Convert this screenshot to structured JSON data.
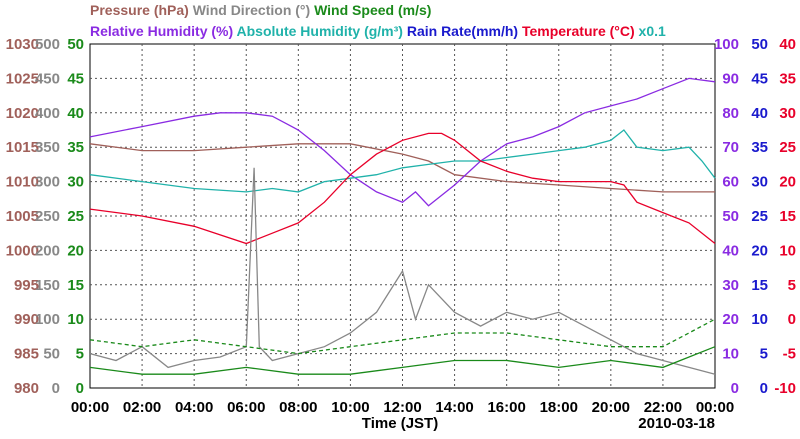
{
  "chart_data": {
    "type": "line",
    "legend_line1": [
      {
        "label": "Pressure (hPa)",
        "color": "#a0605a"
      },
      {
        "label": "Wind Direction (°)",
        "color": "#888888"
      },
      {
        "label": "Wind Speed (m/s)",
        "color": "#1a8a1a"
      }
    ],
    "legend_line2": [
      {
        "label": "Relative Humidity (%)",
        "color": "#8a2be2"
      },
      {
        "label": "Absolute Humidity (g/m³)",
        "color": "#20b2aa"
      },
      {
        "label": "Rain Rate(mm/h)",
        "color": "#1a1acd"
      },
      {
        "label": "Temperature (°C)",
        "color": "#e8002a"
      },
      {
        "label": "x0.1",
        "color": "#20b2aa"
      }
    ],
    "xlabel": "Time (JST)",
    "date": "2010-03-18",
    "x_ticks": [
      "00:00",
      "02:00",
      "04:00",
      "06:00",
      "08:00",
      "10:00",
      "12:00",
      "14:00",
      "16:00",
      "18:00",
      "20:00",
      "22:00",
      "00:00"
    ],
    "x_range": [
      0,
      24
    ],
    "axes": {
      "pressure": {
        "ticks": [
          "1030",
          "1025",
          "1020",
          "1015",
          "1010",
          "1005",
          "1000",
          "995",
          "990",
          "985",
          "980"
        ],
        "range": [
          980,
          1030
        ],
        "color": "#a0605a"
      },
      "wind_direction": {
        "ticks": [
          "500",
          "450",
          "400",
          "350",
          "300",
          "250",
          "200",
          "150",
          "100",
          "50",
          "0"
        ],
        "range": [
          0,
          500
        ],
        "color": "#888888"
      },
      "wind_speed": {
        "ticks": [
          "50",
          "45",
          "40",
          "35",
          "30",
          "25",
          "20",
          "15",
          "10",
          "5",
          "0"
        ],
        "range": [
          0,
          50
        ],
        "color": "#1a8a1a"
      },
      "humidity": {
        "ticks": [
          "100",
          "90",
          "80",
          "70",
          "60",
          "50",
          "40",
          "30",
          "20",
          "10",
          "0"
        ],
        "range": [
          0,
          100
        ],
        "color": "#8a2be2"
      },
      "rain_rate": {
        "ticks": [
          "50",
          "45",
          "40",
          "35",
          "30",
          "25",
          "20",
          "15",
          "10",
          "5",
          "0"
        ],
        "range": [
          0,
          50
        ],
        "color": "#1a1acd"
      },
      "temperature": {
        "ticks": [
          "40",
          "35",
          "30",
          "25",
          "20",
          "15",
          "10",
          "5",
          "0",
          "-5",
          "-10"
        ],
        "range": [
          -10,
          40
        ],
        "color": "#e8002a"
      }
    },
    "series": [
      {
        "name": "Pressure",
        "axis": "pressure",
        "color": "#a0605a",
        "x": [
          0,
          2,
          4,
          6,
          8,
          10,
          12,
          13,
          14,
          16,
          18,
          20,
          22,
          24
        ],
        "values": [
          1015.5,
          1014.5,
          1014.5,
          1015,
          1015.5,
          1015.5,
          1014,
          1013,
          1011,
          1010,
          1009.5,
          1009,
          1008.5,
          1008.5
        ]
      },
      {
        "name": "Relative Humidity",
        "axis": "humidity",
        "color": "#8a2be2",
        "x": [
          0,
          2,
          4,
          5,
          6,
          7,
          8,
          9,
          10,
          11,
          12,
          12.5,
          13,
          14,
          15,
          16,
          17,
          18,
          19,
          20,
          21,
          22,
          23,
          24
        ],
        "values": [
          73,
          76,
          79,
          80,
          80,
          79,
          75,
          69,
          62,
          57,
          54,
          57,
          53,
          59,
          66,
          71,
          73,
          76,
          80,
          82,
          84,
          87,
          90,
          89
        ]
      },
      {
        "name": "Absolute Humidity",
        "axis": "humidity",
        "color": "#20b2aa",
        "x": [
          0,
          2,
          4,
          6,
          7,
          8,
          9,
          10,
          11,
          12,
          13,
          14,
          15,
          16,
          17,
          18,
          19,
          20,
          20.5,
          21,
          22,
          23,
          23.5,
          24
        ],
        "values": [
          62,
          60,
          58,
          57,
          58,
          57,
          60,
          61,
          62,
          64,
          65,
          66,
          66,
          67,
          68,
          69,
          70,
          72,
          75,
          70,
          69,
          70,
          66,
          61
        ]
      },
      {
        "name": "Temperature",
        "axis": "temperature",
        "color": "#e8002a",
        "x": [
          0,
          2,
          4,
          6,
          7,
          8,
          9,
          10,
          11,
          12,
          13,
          13.5,
          14,
          15,
          16,
          17,
          18,
          19,
          20,
          20.5,
          21,
          22,
          23,
          24
        ],
        "values": [
          16,
          15,
          13.5,
          11,
          12.5,
          14,
          17,
          21,
          24,
          26,
          27,
          27,
          26,
          23,
          21.5,
          20.5,
          20,
          20,
          20,
          19.5,
          17,
          15.5,
          14,
          11
        ]
      },
      {
        "name": "Wind Direction",
        "axis": "wind_direction",
        "color": "#888888",
        "x": [
          0,
          1,
          2,
          3,
          4,
          5,
          6,
          6.3,
          6.5,
          7,
          8,
          9,
          10,
          11,
          12,
          12.5,
          13,
          14,
          15,
          16,
          17,
          18,
          19,
          20,
          21,
          22,
          23,
          24
        ],
        "values": [
          50,
          40,
          60,
          30,
          40,
          45,
          60,
          320,
          60,
          40,
          50,
          60,
          80,
          110,
          170,
          100,
          150,
          110,
          90,
          110,
          100,
          110,
          90,
          70,
          50,
          40,
          30,
          20
        ]
      },
      {
        "name": "Wind Speed",
        "axis": "wind_speed",
        "color": "#1a8a1a",
        "x": [
          0,
          2,
          4,
          6,
          8,
          10,
          12,
          14,
          16,
          18,
          20,
          22,
          24
        ],
        "values": [
          3,
          2,
          2,
          3,
          2,
          2,
          3,
          4,
          4,
          3,
          4,
          3,
          6
        ]
      },
      {
        "name": "Wind Speed (gust)",
        "axis": "wind_speed",
        "color": "#1a8a1a",
        "dashed": true,
        "x": [
          0,
          2,
          4,
          6,
          8,
          10,
          12,
          14,
          16,
          18,
          20,
          22,
          24
        ],
        "values": [
          7,
          6,
          7,
          6,
          5,
          6,
          7,
          8,
          8,
          7,
          6,
          6,
          10
        ]
      }
    ]
  }
}
